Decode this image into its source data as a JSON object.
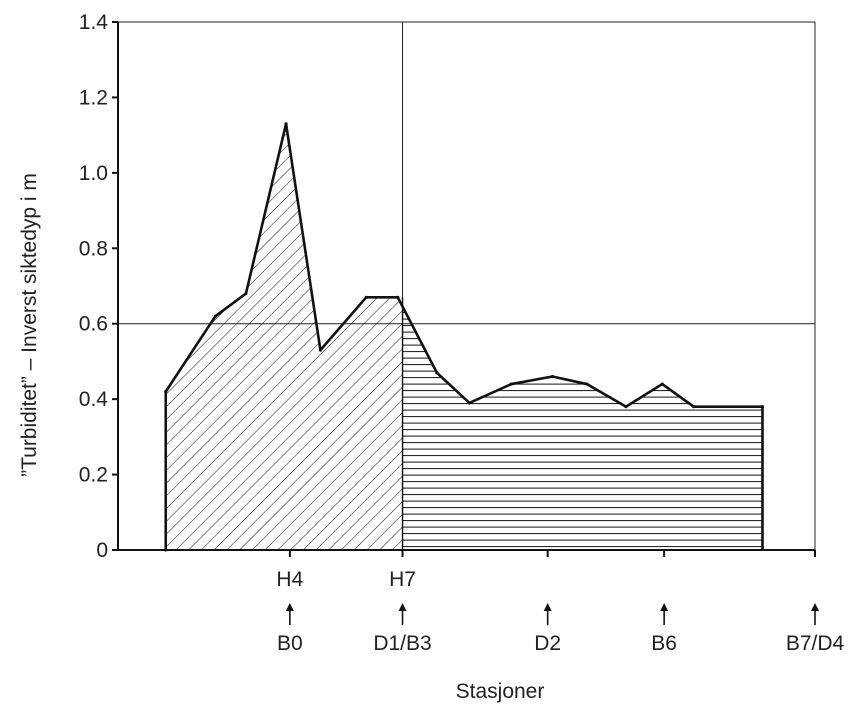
{
  "chart_data": {
    "type": "area",
    "ylabel": "”Turbiditet” – Inverst siktedyp i m",
    "xlabel": "Stasjoner",
    "ylim": [
      0,
      1.4
    ],
    "yticks": [
      0,
      0.2,
      0.4,
      0.6,
      0.8,
      1.0,
      1.2,
      1.4
    ],
    "ytick_labels": [
      "0",
      "0.2",
      "0.4",
      "0.6",
      "0.8",
      "1.0",
      "1.2",
      "1.4"
    ],
    "reference_line_y": 0.6,
    "series": [
      {
        "values": [
          0.0,
          0.42,
          0.62,
          0.68,
          1.13,
          0.53,
          0.67,
          0.67,
          0.47,
          0.39,
          0.44,
          0.46,
          0.44,
          0.38,
          0.44,
          0.38,
          0.38
        ]
      }
    ],
    "x": [
      0.5,
      0.5,
      1.02,
      1.34,
      1.76,
      2.12,
      2.6,
      2.93,
      3.34,
      3.68,
      4.12,
      4.55,
      4.91,
      5.32,
      5.7,
      6.03,
      6.75
    ],
    "x_range": [
      0,
      7.3
    ],
    "station_ticks": [
      {
        "x": 1.8,
        "upper": "H4",
        "lower": "B0"
      },
      {
        "x": 2.98,
        "upper": "H7",
        "lower": "D1/B3"
      },
      {
        "x": 4.5,
        "upper": "",
        "lower": "D2"
      },
      {
        "x": 5.72,
        "upper": "",
        "lower": "B6"
      },
      {
        "x": 7.3,
        "upper": "",
        "lower": "B7/D4"
      }
    ],
    "divider_x": 2.98,
    "grid": false
  }
}
